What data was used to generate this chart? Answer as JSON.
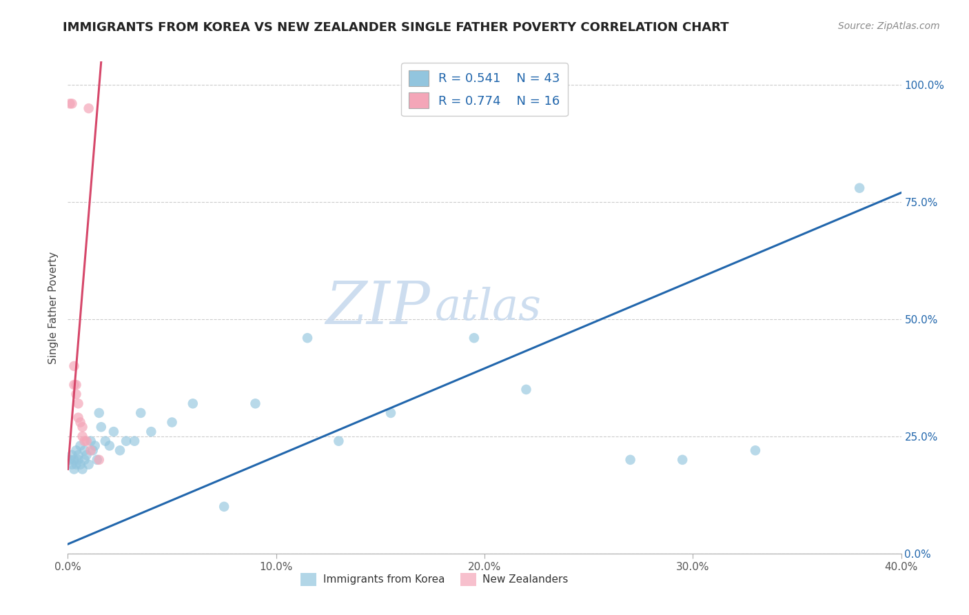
{
  "title": "IMMIGRANTS FROM KOREA VS NEW ZEALANDER SINGLE FATHER POVERTY CORRELATION CHART",
  "source": "Source: ZipAtlas.com",
  "xlabel_ticks": [
    "0.0%",
    "",
    "",
    "",
    "10.0%",
    "",
    "",
    "",
    "",
    "20.0%",
    "",
    "",
    "",
    "",
    "30.0%",
    "",
    "",
    "",
    "",
    "40.0%"
  ],
  "x_tick_vals": [
    0.0,
    0.1,
    0.2,
    0.3,
    0.4
  ],
  "x_tick_labels": [
    "0.0%",
    "10.0%",
    "20.0%",
    "30.0%",
    "40.0%"
  ],
  "y_tick_vals": [
    0.0,
    0.25,
    0.5,
    0.75,
    1.0
  ],
  "y_tick_labels": [
    "0.0%",
    "25.0%",
    "50.0%",
    "75.0%",
    "100.0%"
  ],
  "x_min": 0.0,
  "x_max": 0.4,
  "y_min": 0.0,
  "y_max": 1.05,
  "ylabel": "Single Father Poverty",
  "legend_labels": [
    "Immigrants from Korea",
    "New Zealanders"
  ],
  "blue_color": "#92c5de",
  "pink_color": "#f4a6b8",
  "blue_line_color": "#2166ac",
  "pink_line_color": "#d6476a",
  "watermark_zip": "ZIP",
  "watermark_atlas": "atlas",
  "blue_scatter_x": [
    0.001,
    0.002,
    0.002,
    0.003,
    0.003,
    0.004,
    0.004,
    0.005,
    0.005,
    0.006,
    0.006,
    0.007,
    0.008,
    0.008,
    0.009,
    0.01,
    0.011,
    0.012,
    0.013,
    0.014,
    0.015,
    0.016,
    0.018,
    0.02,
    0.022,
    0.025,
    0.028,
    0.032,
    0.035,
    0.04,
    0.05,
    0.06,
    0.075,
    0.09,
    0.115,
    0.13,
    0.155,
    0.195,
    0.22,
    0.27,
    0.295,
    0.33,
    0.38
  ],
  "blue_scatter_y": [
    0.2,
    0.19,
    0.21,
    0.18,
    0.2,
    0.19,
    0.22,
    0.2,
    0.21,
    0.19,
    0.23,
    0.18,
    0.2,
    0.22,
    0.21,
    0.19,
    0.24,
    0.22,
    0.23,
    0.2,
    0.3,
    0.27,
    0.24,
    0.23,
    0.26,
    0.22,
    0.24,
    0.24,
    0.3,
    0.26,
    0.28,
    0.32,
    0.1,
    0.32,
    0.46,
    0.24,
    0.3,
    0.46,
    0.35,
    0.2,
    0.2,
    0.22,
    0.78
  ],
  "pink_scatter_x": [
    0.001,
    0.002,
    0.01,
    0.003,
    0.003,
    0.004,
    0.004,
    0.005,
    0.005,
    0.006,
    0.007,
    0.007,
    0.008,
    0.009,
    0.011,
    0.015
  ],
  "pink_scatter_y": [
    0.96,
    0.96,
    0.95,
    0.36,
    0.4,
    0.34,
    0.36,
    0.29,
    0.32,
    0.28,
    0.25,
    0.27,
    0.24,
    0.24,
    0.22,
    0.2
  ],
  "blue_line_x": [
    0.0,
    0.4
  ],
  "blue_line_y": [
    0.02,
    0.77
  ],
  "pink_line_x": [
    0.0,
    0.016
  ],
  "pink_line_y": [
    0.18,
    1.05
  ],
  "grid_color": "#cccccc",
  "title_fontsize": 13,
  "axis_label_fontsize": 11,
  "tick_fontsize": 11,
  "source_fontsize": 10
}
